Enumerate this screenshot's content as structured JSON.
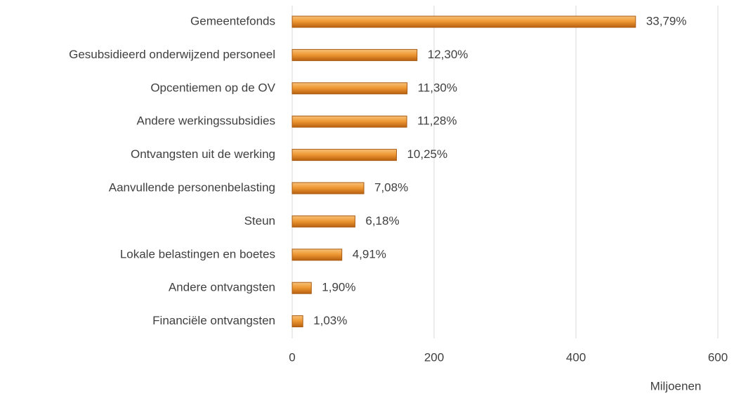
{
  "chart_data": {
    "type": "bar",
    "orientation": "horizontal",
    "categories": [
      "Gemeentefonds",
      "Gesubsidieerd onderwijzend personeel",
      "Opcentiemen op de OV",
      "Andere werkingssubsidies",
      "Ontvangsten uit de werking",
      "Aanvullende personenbelasting",
      "Steun",
      "Lokale belastingen en boetes",
      "Andere ontvangsten",
      "Financiële ontvangsten"
    ],
    "values": [
      484,
      176,
      162,
      161.5,
      147,
      101,
      88.5,
      70,
      27,
      15
    ],
    "data_labels": [
      "33,79%",
      "12,30%",
      "11,30%",
      "11,28%",
      "10,25%",
      "7,08%",
      "6,18%",
      "4,91%",
      "1,90%",
      "1,03%"
    ],
    "color": "#e8922c",
    "xlim": [
      0,
      600
    ],
    "xticks": [
      0,
      200,
      400,
      600
    ],
    "grid": true,
    "x_axis_label": "Miljoenen"
  }
}
